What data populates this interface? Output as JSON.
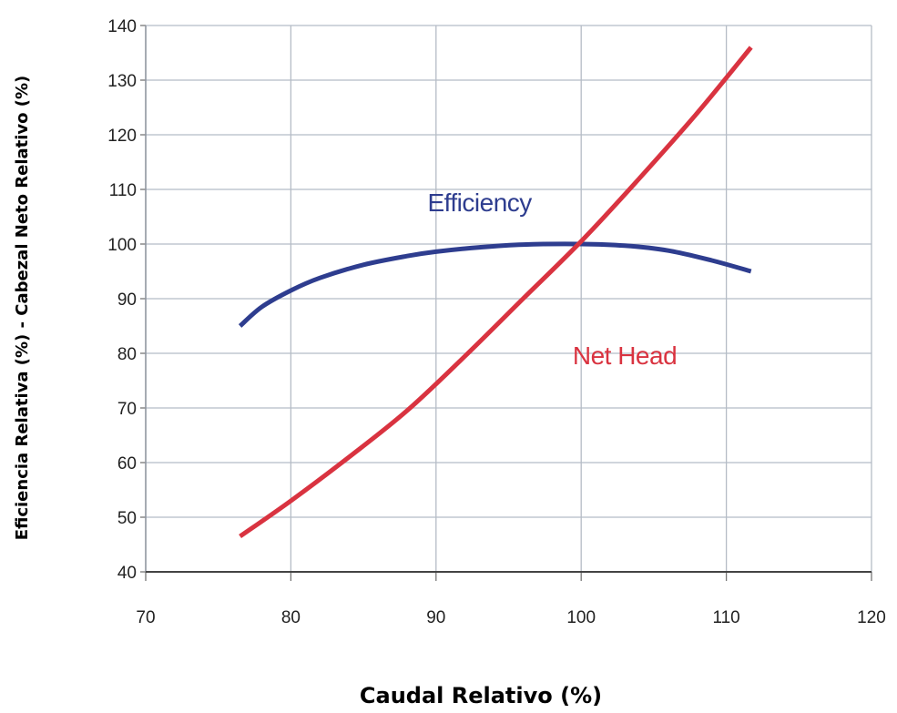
{
  "chart_data": {
    "type": "line",
    "xlabel": "Caudal Relativo (%)",
    "ylabel": "Eficiencia Relativa (%) - Cabezal Neto Relativo (%)",
    "xlim": [
      70,
      120
    ],
    "ylim": [
      40,
      140
    ],
    "xticks": [
      "70",
      "80",
      "90",
      "100",
      "110",
      "120"
    ],
    "yticks": [
      "40",
      "50",
      "60",
      "70",
      "80",
      "90",
      "100",
      "110",
      "120",
      "130",
      "140"
    ],
    "grid": true,
    "series": [
      {
        "name": "Efficiency",
        "color": "#2e3d8f",
        "x": [
          76.5,
          78,
          80,
          82,
          85,
          88,
          90,
          93,
          96,
          100,
          103,
          106,
          109,
          111.7
        ],
        "y": [
          85,
          88.5,
          91.5,
          93.8,
          96.2,
          97.8,
          98.6,
          99.4,
          99.9,
          100,
          99.7,
          98.8,
          97,
          95
        ]
      },
      {
        "name": "Net Head",
        "color": "#d93340",
        "x": [
          76.5,
          80,
          84,
          88,
          92,
          96,
          100,
          104,
          108,
          111.7
        ],
        "y": [
          46.5,
          53,
          61,
          69.5,
          79.5,
          90,
          100.5,
          112,
          124,
          136
        ]
      }
    ],
    "annotations": [
      {
        "text": "Efficiency",
        "x": 93,
        "y": 106,
        "series": "Efficiency"
      },
      {
        "text": "Net Head",
        "x": 103,
        "y": 78,
        "series": "Net Head"
      }
    ]
  }
}
